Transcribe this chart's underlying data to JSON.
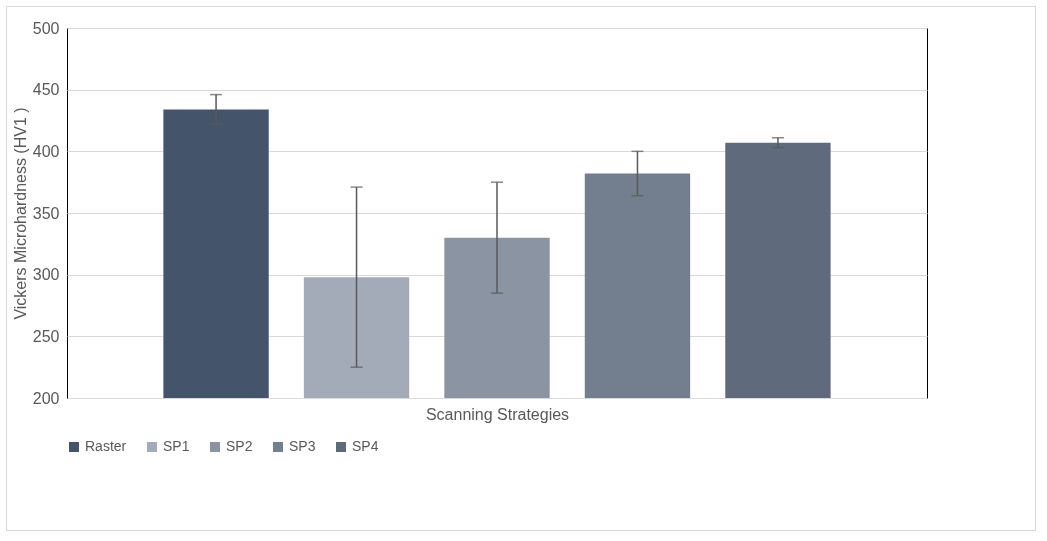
{
  "chart_data": {
    "type": "bar",
    "xlabel": "Scanning Strategies",
    "ylabel": "Vickers Microhardness (HV1 )",
    "categories": [
      null
    ],
    "series": [
      {
        "name": "Raster",
        "color": "#44546a",
        "values": [
          434
        ],
        "errors": [
          12
        ]
      },
      {
        "name": "SP1",
        "color": "#a2abb7",
        "values": [
          298
        ],
        "errors": [
          73
        ]
      },
      {
        "name": "SP2",
        "color": "#8a94a3",
        "values": [
          330
        ],
        "errors": [
          45
        ]
      },
      {
        "name": "SP3",
        "color": "#737e8e",
        "values": [
          382
        ],
        "errors": [
          18
        ]
      },
      {
        "name": "SP4",
        "color": "#5f6b7d",
        "values": [
          407
        ],
        "errors": [
          4
        ]
      }
    ],
    "ylim": [
      200,
      500
    ],
    "yticks": [
      200,
      250,
      300,
      350,
      400,
      450,
      500
    ],
    "grid": "y",
    "legend": "bottom"
  }
}
